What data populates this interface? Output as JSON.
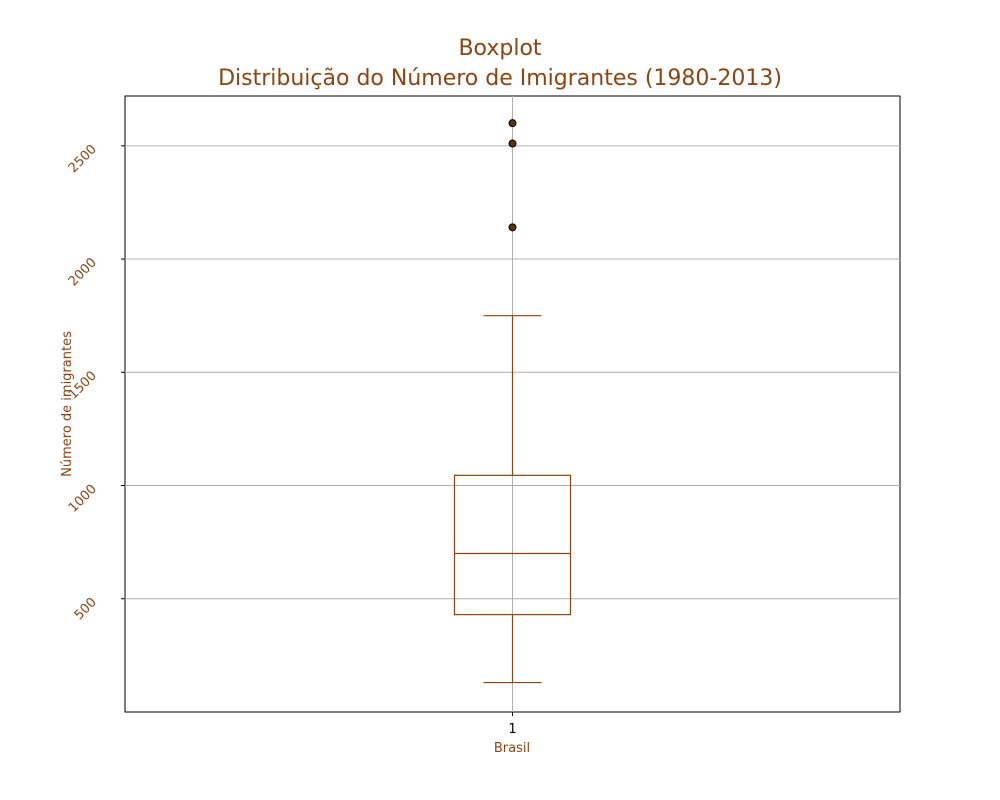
{
  "chart_data": {
    "type": "boxplot",
    "title": "Boxplot",
    "subtitle": "Distribuição do Número de Imigrantes (1980-2013)",
    "xlabel": "Brasil",
    "ylabel": "Número de imigrantes",
    "categories": [
      "1"
    ],
    "ylim": [
      0,
      2720
    ],
    "yticks": [
      500,
      1000,
      1500,
      2000,
      2500
    ],
    "grid": true,
    "series": [
      {
        "whisker_low": 130,
        "q1": 430,
        "median": 700,
        "q3": 1045,
        "whisker_high": 1750,
        "outliers": [
          2140,
          2510,
          2600
        ]
      }
    ],
    "colors": {
      "box": "#8B4513",
      "text": "#8B4513",
      "outlier_fill": "#5C3310",
      "grid": "#b0b0b0"
    }
  }
}
